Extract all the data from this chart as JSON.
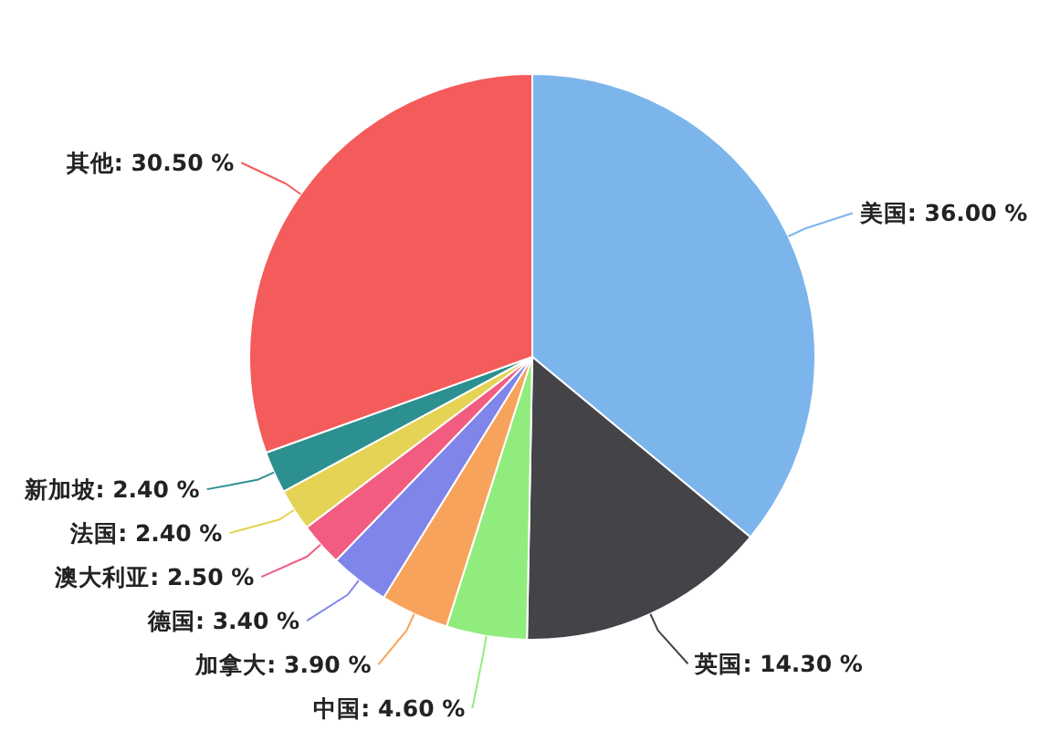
{
  "chart_data": {
    "type": "pie",
    "categories": [
      "美国",
      "英国",
      "中国",
      "加拿大",
      "德国",
      "澳大利亚",
      "法国",
      "新加坡",
      "其他"
    ],
    "values": [
      36.0,
      14.3,
      4.6,
      3.9,
      3.4,
      2.5,
      2.4,
      2.4,
      30.5
    ],
    "colors": [
      "#7cb5ec",
      "#434348",
      "#90ed7d",
      "#f7a35c",
      "#8085e9",
      "#f15c80",
      "#e4d354",
      "#2b908f",
      "#f45b5b"
    ],
    "value_labels": [
      "36.00 %",
      "14.30 %",
      "4.60 %",
      "3.90 %",
      "3.40 %",
      "2.50 %",
      "2.40 %",
      "2.40 %",
      "30.50 %"
    ]
  }
}
